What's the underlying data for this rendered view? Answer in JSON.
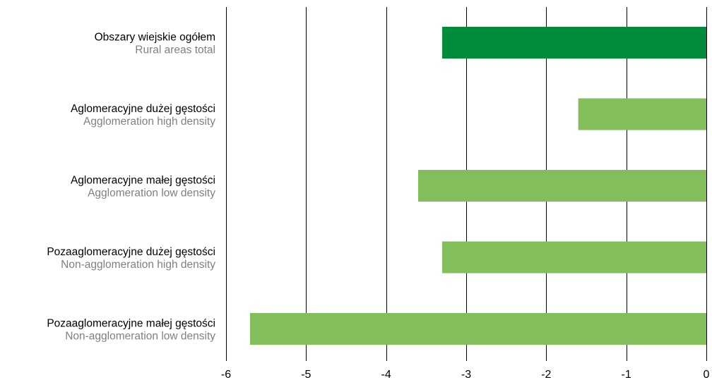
{
  "chart_data": {
    "type": "bar",
    "orientation": "horizontal",
    "categories": [
      {
        "label": "Obszary wiejskie ogółem",
        "sublabel": "Rural areas total"
      },
      {
        "label": "Aglomeracyjne dużej gęstości",
        "sublabel": "Agglomeration high density"
      },
      {
        "label": "Aglomeracyjne małej gęstości",
        "sublabel": "Agglomeration low density"
      },
      {
        "label": "Pozaaglomeracyjne dużej gęstości",
        "sublabel": "Non-agglomeration high density"
      },
      {
        "label": "Pozaaglomeracyjne małej gęstości",
        "sublabel": "Non-agglomeration low density"
      }
    ],
    "values": [
      -3.3,
      -1.6,
      -3.6,
      -3.3,
      -5.7
    ],
    "bar_colors": [
      "#008c3a",
      "#82bf5a",
      "#82bf5a",
      "#82bf5a",
      "#82bf5a"
    ],
    "xlim": [
      -6,
      0
    ],
    "xticks": [
      "-6",
      "-5",
      "-4",
      "-3",
      "-2",
      "-1",
      "0"
    ],
    "grid": "vertical",
    "gridline_color": "#000000",
    "title": "",
    "xlabel": "",
    "ylabel": ""
  }
}
